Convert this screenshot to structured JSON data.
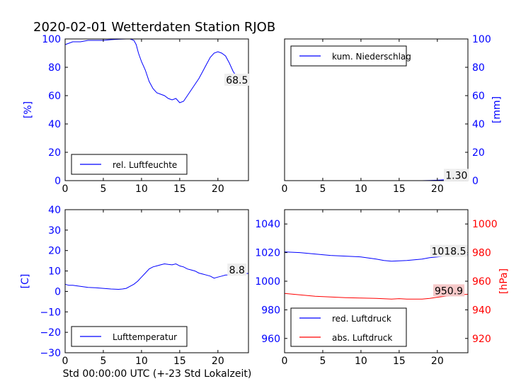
{
  "title": "2020-02-01 Wetterdaten Station RJOB",
  "xlabel": "Std 00:00:00 UTC (+-23 Std Lokalzeit)",
  "colors": {
    "blue": "#0000ff",
    "red": "#ff0000",
    "axis": "#000000"
  },
  "chart_data": [
    {
      "type": "line",
      "id": "humidity",
      "xlim": [
        0,
        24
      ],
      "xticks": [
        0,
        5,
        10,
        15,
        20
      ],
      "ylim": [
        0,
        100
      ],
      "yticks": [
        0,
        20,
        40,
        60,
        80,
        100
      ],
      "ylabel": "[%]",
      "legend_position": "lower-left",
      "annotation": {
        "text": "68.5",
        "x": 22.5,
        "y": 68.5
      },
      "series": [
        {
          "name": "rel. Luftfeuchte",
          "color": "#0000ff",
          "x": [
            0,
            0.5,
            1,
            2,
            3,
            4,
            5,
            6,
            7,
            8,
            8.5,
            9,
            9.3,
            9.6,
            10,
            10.5,
            11,
            11.5,
            12,
            12.5,
            13,
            13.5,
            14,
            14.5,
            15,
            15.5,
            16,
            16.5,
            17,
            17.5,
            18,
            18.5,
            19,
            19.5,
            20,
            20.5,
            21,
            21.5,
            22,
            22.5,
            23,
            23.5,
            24
          ],
          "y": [
            96,
            97,
            98,
            98,
            99,
            99,
            99,
            99.5,
            99.8,
            100,
            100,
            99,
            96,
            90,
            84,
            78,
            70,
            65,
            62,
            61,
            60,
            58,
            57,
            58,
            55,
            56,
            60,
            64,
            68,
            72,
            77,
            82,
            87,
            90,
            91,
            90,
            88,
            83,
            77,
            73,
            70,
            69,
            68.5
          ]
        }
      ]
    },
    {
      "type": "line",
      "id": "precipitation",
      "xlim": [
        0,
        24
      ],
      "xticks": [
        0,
        5,
        10,
        15,
        20
      ],
      "ylim": [
        0,
        100
      ],
      "yticks": [
        0,
        20,
        40,
        60,
        80,
        100
      ],
      "ylabel": "[mm]",
      "legend_position": "top-left",
      "annotation": {
        "text": "1.30",
        "x": 22.5,
        "y": 1.3
      },
      "series": [
        {
          "name": "kum. Niederschlag",
          "color": "#0000ff",
          "x": [
            0,
            5,
            10,
            15,
            18,
            19,
            20,
            21,
            22,
            23,
            24
          ],
          "y": [
            0,
            0,
            0,
            0,
            0,
            0.1,
            0.3,
            0.6,
            0.9,
            1.2,
            1.3
          ]
        }
      ]
    },
    {
      "type": "line",
      "id": "temperature",
      "xlim": [
        0,
        24
      ],
      "xticks": [
        0,
        5,
        10,
        15,
        20
      ],
      "ylim": [
        -30,
        40
      ],
      "yticks": [
        -30,
        -20,
        -10,
        0,
        10,
        20,
        30,
        40
      ],
      "ylabel": "[C]",
      "legend_position": "lower-left",
      "annotation": {
        "text": "8.8",
        "x": 22.5,
        "y": 8.8
      },
      "series": [
        {
          "name": "Lufttemperatur",
          "color": "#0000ff",
          "x": [
            0,
            0.5,
            1,
            2,
            3,
            4,
            5,
            6,
            7,
            7.5,
            8,
            8.5,
            9,
            9.5,
            10,
            10.5,
            11,
            11.5,
            12,
            12.5,
            13,
            13.5,
            14,
            14.5,
            15,
            15.5,
            16,
            16.5,
            17,
            17.5,
            18,
            18.5,
            19,
            19.5,
            20,
            20.5,
            21,
            21.5,
            22,
            22.5,
            23,
            23.5,
            24
          ],
          "y": [
            3.5,
            3,
            3,
            2.5,
            2,
            1.8,
            1.5,
            1.2,
            1,
            1.2,
            1.5,
            2.5,
            3.5,
            5,
            7,
            9,
            11,
            12,
            12.5,
            13,
            13.5,
            13.2,
            13,
            13.5,
            12.5,
            12,
            11,
            10.5,
            10,
            9,
            8.5,
            8,
            7.5,
            6.5,
            7,
            7.5,
            8,
            8,
            8.5,
            8.5,
            8.8,
            8.7,
            8.8
          ]
        }
      ]
    },
    {
      "type": "line",
      "id": "pressure",
      "xlim": [
        0,
        24
      ],
      "xticks": [
        0,
        5,
        10,
        15,
        20
      ],
      "ylim": [
        950,
        1050
      ],
      "yticks": [
        960,
        980,
        1000,
        1020,
        1040
      ],
      "y2lim": [
        910,
        1010
      ],
      "y2ticks": [
        920,
        940,
        960,
        980,
        1000
      ],
      "y2label": "[hPa]",
      "legend_position": "lower-left",
      "annotations": [
        {
          "text": "1018.5",
          "x": 21.5,
          "y": 1018.5,
          "axis": "left",
          "color": "#0000ff"
        },
        {
          "text": "950.9",
          "x": 21.5,
          "y": 950.9,
          "axis": "right",
          "color": "#ff0000"
        }
      ],
      "series": [
        {
          "name": "red. Luftdruck",
          "color": "#0000ff",
          "axis": "left",
          "x": [
            0,
            2,
            4,
            6,
            8,
            10,
            12,
            13,
            14,
            15,
            16,
            17,
            18,
            19,
            20,
            21,
            22,
            23,
            24
          ],
          "y": [
            1020.5,
            1020,
            1019,
            1018,
            1017.5,
            1017,
            1015.5,
            1014.5,
            1014,
            1014.2,
            1014.5,
            1015,
            1015.5,
            1016.5,
            1017,
            1017.5,
            1018,
            1018.2,
            1018.5
          ]
        },
        {
          "name": "abs. Luftdruck",
          "color": "#ff0000",
          "axis": "right",
          "x": [
            0,
            2,
            4,
            6,
            8,
            10,
            12,
            14,
            15,
            16,
            18,
            19,
            20,
            21,
            22,
            23,
            24
          ],
          "y": [
            951.5,
            950.5,
            949.5,
            949,
            948.5,
            948.2,
            948,
            947.5,
            947.8,
            947.5,
            947.5,
            948,
            948.8,
            949.5,
            950,
            950.5,
            950.9
          ]
        }
      ]
    }
  ]
}
